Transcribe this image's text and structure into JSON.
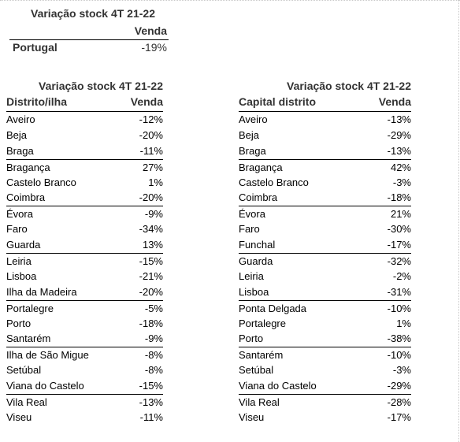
{
  "summary": {
    "title": "Variação stock 4T 21-22",
    "column": "Venda",
    "country": "Portugal",
    "value": "-19%"
  },
  "district_table": {
    "title": "Variação stock 4T 21-22",
    "col_name": "Distrito/ilha",
    "col_value": "Venda",
    "rows": [
      {
        "name": "Aveiro",
        "value": "-12%"
      },
      {
        "name": "Beja",
        "value": "-20%"
      },
      {
        "name": "Braga",
        "value": "-11%"
      },
      {
        "name": "Bragança",
        "value": "27%"
      },
      {
        "name": "Castelo Branco",
        "value": "1%"
      },
      {
        "name": "Coimbra",
        "value": "-20%"
      },
      {
        "name": "Évora",
        "value": "-9%"
      },
      {
        "name": "Faro",
        "value": "-34%"
      },
      {
        "name": "Guarda",
        "value": "13%"
      },
      {
        "name": "Leiria",
        "value": "-15%"
      },
      {
        "name": "Lisboa",
        "value": "-21%"
      },
      {
        "name": "Ilha da Madeira",
        "value": "-20%"
      },
      {
        "name": "Portalegre",
        "value": "-5%"
      },
      {
        "name": "Porto",
        "value": "-18%"
      },
      {
        "name": "Santarém",
        "value": "-9%"
      },
      {
        "name": "Ilha de São Migue",
        "value": "-8%"
      },
      {
        "name": "Setúbal",
        "value": "-8%"
      },
      {
        "name": "Viana do Castelo",
        "value": "-15%"
      },
      {
        "name": "Vila Real",
        "value": "-13%"
      },
      {
        "name": "Viseu",
        "value": "-11%"
      }
    ]
  },
  "capital_table": {
    "title": "Variação stock 4T 21-22",
    "col_name": "Capital distrito",
    "col_value": "Venda",
    "rows": [
      {
        "name": "Aveiro",
        "value": "-13%"
      },
      {
        "name": "Beja",
        "value": "-29%"
      },
      {
        "name": "Braga",
        "value": "-13%"
      },
      {
        "name": "Bragança",
        "value": "42%"
      },
      {
        "name": "Castelo Branco",
        "value": "-3%"
      },
      {
        "name": "Coimbra",
        "value": "-18%"
      },
      {
        "name": "Évora",
        "value": "21%"
      },
      {
        "name": "Faro",
        "value": "-30%"
      },
      {
        "name": "Funchal",
        "value": "-17%"
      },
      {
        "name": "Guarda",
        "value": "-32%"
      },
      {
        "name": "Leiria",
        "value": "-2%"
      },
      {
        "name": "Lisboa",
        "value": "-31%"
      },
      {
        "name": "Ponta Delgada",
        "value": "-10%"
      },
      {
        "name": "Portalegre",
        "value": "1%"
      },
      {
        "name": "Porto",
        "value": "-38%"
      },
      {
        "name": "Santarém",
        "value": "-10%"
      },
      {
        "name": "Setúbal",
        "value": "-3%"
      },
      {
        "name": "Viana do Castelo",
        "value": "-29%"
      },
      {
        "name": "Vila Real",
        "value": "-28%"
      },
      {
        "name": "Viseu",
        "value": "-17%"
      }
    ]
  }
}
